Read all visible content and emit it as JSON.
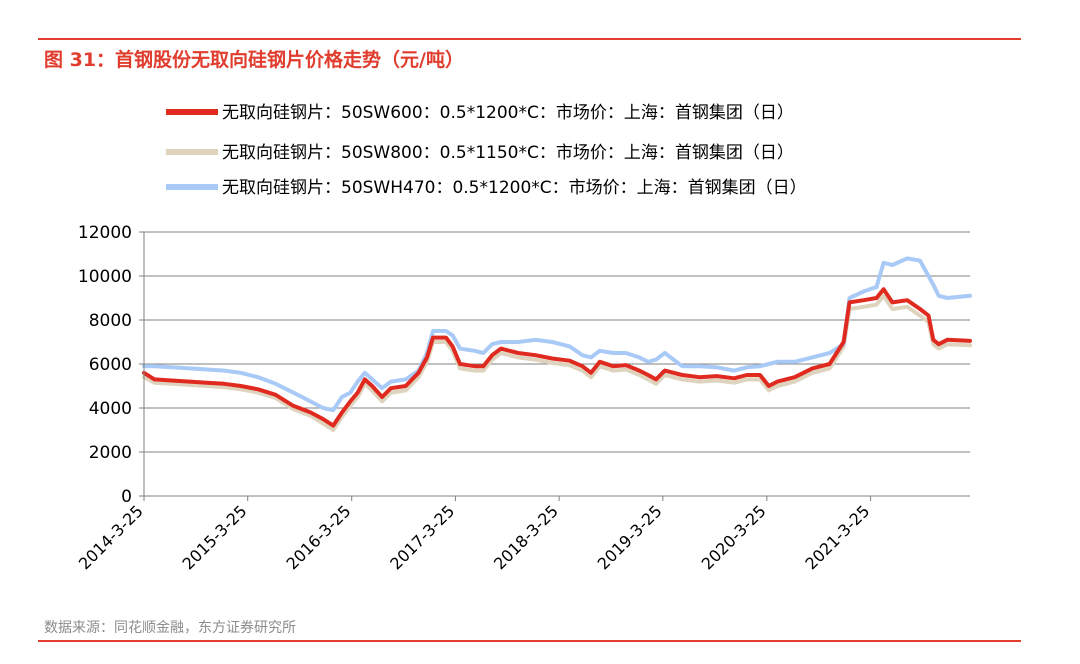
{
  "figure_title": "图 31：首钢股份无取向硅钢片价格走势（元/吨）",
  "source": "数据来源：同花顺金融，东方证券研究所",
  "colors": {
    "accent": "#e03d2f",
    "series_600": "#e02a20",
    "series_800": "#ded3bd",
    "series_470": "#a9caf7",
    "grid": "#808080",
    "axis": "#808080",
    "text": "#000000"
  },
  "chart_data": {
    "type": "line",
    "title": "",
    "xlabel": "",
    "ylabel": "",
    "ylim": [
      0,
      12000
    ],
    "yticks": [
      0,
      2000,
      4000,
      6000,
      8000,
      10000,
      12000
    ],
    "xlim": [
      "2014-03-25",
      "2022-03-10"
    ],
    "xticks": [
      "2014-3-25",
      "2015-3-25",
      "2016-3-25",
      "2017-3-25",
      "2018-3-25",
      "2019-3-25",
      "2020-3-25",
      "2021-3-25"
    ],
    "grid": "horizontal",
    "legend_position": "top",
    "series": [
      {
        "name": "无取向硅钢片：50SW600：0.5*1200*C：市场价：上海：首钢集团（日）",
        "color_key": "series_600",
        "points": [
          [
            "2014-03-25",
            5600
          ],
          [
            "2014-05-01",
            5300
          ],
          [
            "2014-07-01",
            5250
          ],
          [
            "2014-09-01",
            5200
          ],
          [
            "2014-11-01",
            5150
          ],
          [
            "2015-01-01",
            5100
          ],
          [
            "2015-03-01",
            5000
          ],
          [
            "2015-05-01",
            4850
          ],
          [
            "2015-07-01",
            4600
          ],
          [
            "2015-09-01",
            4100
          ],
          [
            "2015-11-01",
            3800
          ],
          [
            "2015-12-15",
            3500
          ],
          [
            "2016-01-20",
            3200
          ],
          [
            "2016-02-20",
            3800
          ],
          [
            "2016-03-20",
            4300
          ],
          [
            "2016-04-15",
            4700
          ],
          [
            "2016-05-10",
            5300
          ],
          [
            "2016-06-05",
            5000
          ],
          [
            "2016-07-10",
            4500
          ],
          [
            "2016-08-10",
            4900
          ],
          [
            "2016-10-01",
            5000
          ],
          [
            "2016-11-15",
            5600
          ],
          [
            "2016-12-15",
            6300
          ],
          [
            "2017-01-05",
            7200
          ],
          [
            "2017-02-20",
            7200
          ],
          [
            "2017-03-15",
            6800
          ],
          [
            "2017-04-10",
            6000
          ],
          [
            "2017-06-01",
            5900
          ],
          [
            "2017-07-01",
            5900
          ],
          [
            "2017-08-01",
            6400
          ],
          [
            "2017-09-01",
            6700
          ],
          [
            "2017-11-01",
            6500
          ],
          [
            "2018-01-01",
            6400
          ],
          [
            "2018-03-01",
            6250
          ],
          [
            "2018-05-01",
            6150
          ],
          [
            "2018-06-15",
            5900
          ],
          [
            "2018-07-15",
            5600
          ],
          [
            "2018-08-15",
            6100
          ],
          [
            "2018-10-01",
            5900
          ],
          [
            "2018-11-15",
            5950
          ],
          [
            "2019-01-01",
            5700
          ],
          [
            "2019-02-01",
            5500
          ],
          [
            "2019-03-01",
            5300
          ],
          [
            "2019-04-01",
            5700
          ],
          [
            "2019-06-01",
            5500
          ],
          [
            "2019-08-01",
            5400
          ],
          [
            "2019-10-01",
            5450
          ],
          [
            "2019-12-01",
            5350
          ],
          [
            "2020-01-15",
            5500
          ],
          [
            "2020-03-01",
            5500
          ],
          [
            "2020-04-01",
            5000
          ],
          [
            "2020-05-01",
            5200
          ],
          [
            "2020-07-01",
            5400
          ],
          [
            "2020-09-01",
            5800
          ],
          [
            "2020-11-01",
            6000
          ],
          [
            "2020-12-20",
            7000
          ],
          [
            "2021-01-10",
            8800
          ],
          [
            "2021-03-01",
            8900
          ],
          [
            "2021-04-15",
            9000
          ],
          [
            "2021-05-10",
            9400
          ],
          [
            "2021-06-10",
            8800
          ],
          [
            "2021-08-01",
            8900
          ],
          [
            "2021-09-15",
            8500
          ],
          [
            "2021-10-15",
            8200
          ],
          [
            "2021-11-01",
            7100
          ],
          [
            "2021-11-20",
            6900
          ],
          [
            "2021-12-20",
            7100
          ],
          [
            "2022-03-10",
            7050
          ]
        ]
      },
      {
        "name": "无取向硅钢片：50SW800：0.5*1150*C：市场价：上海：首钢集团（日）",
        "color_key": "series_800",
        "points": [
          [
            "2014-03-25",
            5400
          ],
          [
            "2014-05-01",
            5150
          ],
          [
            "2014-07-01",
            5100
          ],
          [
            "2014-09-01",
            5050
          ],
          [
            "2014-11-01",
            5000
          ],
          [
            "2015-01-01",
            4950
          ],
          [
            "2015-03-01",
            4850
          ],
          [
            "2015-05-01",
            4700
          ],
          [
            "2015-07-01",
            4450
          ],
          [
            "2015-09-01",
            3950
          ],
          [
            "2015-11-01",
            3650
          ],
          [
            "2015-12-15",
            3300
          ],
          [
            "2016-01-20",
            3000
          ],
          [
            "2016-02-20",
            3600
          ],
          [
            "2016-03-20",
            4100
          ],
          [
            "2016-04-15",
            4500
          ],
          [
            "2016-05-10",
            5100
          ],
          [
            "2016-06-05",
            4800
          ],
          [
            "2016-07-10",
            4300
          ],
          [
            "2016-08-10",
            4700
          ],
          [
            "2016-10-01",
            4800
          ],
          [
            "2016-11-15",
            5400
          ],
          [
            "2016-12-15",
            6100
          ],
          [
            "2017-01-05",
            7000
          ],
          [
            "2017-02-20",
            7000
          ],
          [
            "2017-03-15",
            6600
          ],
          [
            "2017-04-10",
            5800
          ],
          [
            "2017-06-01",
            5700
          ],
          [
            "2017-07-01",
            5700
          ],
          [
            "2017-08-01",
            6200
          ],
          [
            "2017-09-01",
            6500
          ],
          [
            "2017-11-01",
            6300
          ],
          [
            "2018-01-01",
            6200
          ],
          [
            "2018-03-01",
            6050
          ],
          [
            "2018-05-01",
            5950
          ],
          [
            "2018-06-15",
            5700
          ],
          [
            "2018-07-15",
            5400
          ],
          [
            "2018-08-15",
            5900
          ],
          [
            "2018-10-01",
            5700
          ],
          [
            "2018-11-15",
            5750
          ],
          [
            "2019-01-01",
            5500
          ],
          [
            "2019-02-01",
            5300
          ],
          [
            "2019-03-01",
            5100
          ],
          [
            "2019-04-01",
            5500
          ],
          [
            "2019-06-01",
            5300
          ],
          [
            "2019-08-01",
            5200
          ],
          [
            "2019-10-01",
            5250
          ],
          [
            "2019-12-01",
            5150
          ],
          [
            "2020-01-15",
            5300
          ],
          [
            "2020-03-01",
            5300
          ],
          [
            "2020-04-01",
            4800
          ],
          [
            "2020-05-01",
            5000
          ],
          [
            "2020-07-01",
            5200
          ],
          [
            "2020-09-01",
            5600
          ],
          [
            "2020-11-01",
            5800
          ],
          [
            "2020-12-20",
            6800
          ],
          [
            "2021-01-10",
            8500
          ],
          [
            "2021-03-01",
            8600
          ],
          [
            "2021-04-15",
            8700
          ],
          [
            "2021-05-10",
            9100
          ],
          [
            "2021-06-10",
            8500
          ],
          [
            "2021-08-01",
            8600
          ],
          [
            "2021-09-15",
            8200
          ],
          [
            "2021-10-15",
            7900
          ],
          [
            "2021-11-01",
            6900
          ],
          [
            "2021-11-20",
            6700
          ],
          [
            "2021-12-20",
            6900
          ],
          [
            "2022-03-10",
            6850
          ]
        ]
      },
      {
        "name": "无取向硅钢片：50SWH470：0.5*1200*C：市场价：上海：首钢集团（日）",
        "color_key": "series_470",
        "points": [
          [
            "2014-03-25",
            5900
          ],
          [
            "2014-05-01",
            5900
          ],
          [
            "2014-07-01",
            5850
          ],
          [
            "2014-09-01",
            5800
          ],
          [
            "2014-11-01",
            5750
          ],
          [
            "2015-01-01",
            5700
          ],
          [
            "2015-03-01",
            5600
          ],
          [
            "2015-05-01",
            5400
          ],
          [
            "2015-07-01",
            5100
          ],
          [
            "2015-09-01",
            4700
          ],
          [
            "2015-11-01",
            4300
          ],
          [
            "2015-12-15",
            4000
          ],
          [
            "2016-01-20",
            3900
          ],
          [
            "2016-02-20",
            4500
          ],
          [
            "2016-03-20",
            4700
          ],
          [
            "2016-04-15",
            5200
          ],
          [
            "2016-05-10",
            5600
          ],
          [
            "2016-06-05",
            5300
          ],
          [
            "2016-07-10",
            4900
          ],
          [
            "2016-08-10",
            5200
          ],
          [
            "2016-10-01",
            5300
          ],
          [
            "2016-11-15",
            5700
          ],
          [
            "2016-12-15",
            6500
          ],
          [
            "2017-01-05",
            7500
          ],
          [
            "2017-02-20",
            7500
          ],
          [
            "2017-03-15",
            7300
          ],
          [
            "2017-04-10",
            6700
          ],
          [
            "2017-06-01",
            6600
          ],
          [
            "2017-07-01",
            6500
          ],
          [
            "2017-08-01",
            6900
          ],
          [
            "2017-09-01",
            7000
          ],
          [
            "2017-11-01",
            7000
          ],
          [
            "2018-01-01",
            7100
          ],
          [
            "2018-03-01",
            7000
          ],
          [
            "2018-05-01",
            6800
          ],
          [
            "2018-06-15",
            6400
          ],
          [
            "2018-07-15",
            6300
          ],
          [
            "2018-08-15",
            6600
          ],
          [
            "2018-10-01",
            6500
          ],
          [
            "2018-11-15",
            6500
          ],
          [
            "2019-01-01",
            6300
          ],
          [
            "2019-02-01",
            6100
          ],
          [
            "2019-03-01",
            6200
          ],
          [
            "2019-04-01",
            6500
          ],
          [
            "2019-06-01",
            5900
          ],
          [
            "2019-08-01",
            5900
          ],
          [
            "2019-10-01",
            5850
          ],
          [
            "2019-12-01",
            5700
          ],
          [
            "2020-01-15",
            5850
          ],
          [
            "2020-03-01",
            5900
          ],
          [
            "2020-04-01",
            6000
          ],
          [
            "2020-05-01",
            6100
          ],
          [
            "2020-07-01",
            6100
          ],
          [
            "2020-09-01",
            6300
          ],
          [
            "2020-11-01",
            6500
          ],
          [
            "2020-12-20",
            6900
          ],
          [
            "2021-01-10",
            9000
          ],
          [
            "2021-03-01",
            9300
          ],
          [
            "2021-04-15",
            9500
          ],
          [
            "2021-05-10",
            10600
          ],
          [
            "2021-06-10",
            10500
          ],
          [
            "2021-08-01",
            10800
          ],
          [
            "2021-09-15",
            10700
          ],
          [
            "2021-10-15",
            10000
          ],
          [
            "2021-11-01",
            9600
          ],
          [
            "2021-11-20",
            9100
          ],
          [
            "2021-12-20",
            9000
          ],
          [
            "2022-03-10",
            9100
          ]
        ]
      }
    ]
  }
}
